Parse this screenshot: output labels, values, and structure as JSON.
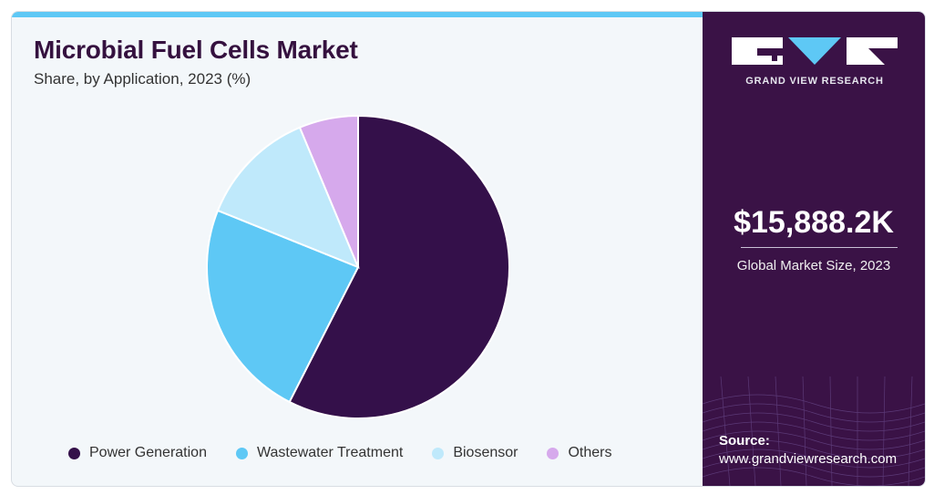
{
  "title": "Microbial Fuel Cells Market",
  "subtitle": "Share, by Application, 2023 (%)",
  "colors": {
    "accent_bar": "#5ec8f5",
    "panel_bg": "#3a1246",
    "title_color": "#35113f"
  },
  "chart_data": {
    "type": "pie",
    "title": "Microbial Fuel Cells Market",
    "subtitle": "Share, by Application, 2023 (%)",
    "legend_position": "bottom",
    "slices": [
      {
        "name": "Power Generation",
        "value": 57.5,
        "color": "#34104a"
      },
      {
        "name": "Wastewater Treatment",
        "value": 23.6,
        "color": "#5ec8f5"
      },
      {
        "name": "Biosensor",
        "value": 12.6,
        "color": "#bfe9fb"
      },
      {
        "name": "Others",
        "value": 6.3,
        "color": "#d6a9ec"
      }
    ]
  },
  "side_panel": {
    "brand": "GRAND VIEW RESEARCH",
    "market_size": "$15,888.2K",
    "market_size_label": "Global Market Size, 2023",
    "source_label": "Source:",
    "source_url": "www.grandviewresearch.com"
  }
}
